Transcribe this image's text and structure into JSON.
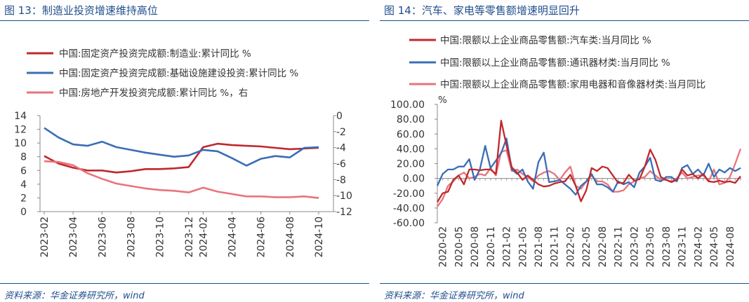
{
  "left": {
    "title": "图 13：制造业投资增速维持高位",
    "source": "资料来源：华金证券研究所，wind",
    "chart_data": {
      "type": "line",
      "x": [
        "2023-02",
        "2023-03",
        "2023-04",
        "2023-05",
        "2023-06",
        "2023-07",
        "2023-08",
        "2023-09",
        "2023-10",
        "2023-11",
        "2023-12",
        "2024-02",
        "2024-03",
        "2024-04",
        "2024-05",
        "2024-06",
        "2024-07",
        "2024-08",
        "2024-09",
        "2024-10"
      ],
      "xticks": [
        "2023-02",
        "2023-04",
        "2023-06",
        "2023-08",
        "2023-10",
        "2023-12",
        "2024-02",
        "2024-04",
        "2024-06",
        "2024-08",
        "2024-10"
      ],
      "y_left_ticks": [
        "14",
        "12",
        "10",
        "8",
        "6",
        "4",
        "2",
        "0"
      ],
      "y_right_ticks": [
        "0",
        "-2",
        "-4",
        "-6",
        "-8",
        "-10",
        "-12"
      ],
      "ylim_left": [
        0,
        14
      ],
      "ylim_right": [
        -12,
        0
      ],
      "series": [
        {
          "name": "中国:固定资产投资完成额:制造业:累计同比 %",
          "axis": "left",
          "color": "#c0282d",
          "values": [
            8.1,
            7.0,
            6.4,
            6.0,
            6.0,
            5.7,
            5.9,
            6.2,
            6.2,
            6.3,
            6.5,
            9.4,
            9.9,
            9.7,
            9.6,
            9.5,
            9.3,
            9.1,
            9.2,
            9.3
          ]
        },
        {
          "name": "中国:固定资产投资完成额:基础设施建设投资:累计同比 %",
          "axis": "left",
          "color": "#3a6db5",
          "values": [
            12.2,
            10.8,
            9.8,
            9.6,
            10.2,
            9.4,
            9.0,
            8.6,
            8.3,
            8.0,
            8.2,
            9.0,
            8.8,
            7.8,
            6.7,
            7.7,
            8.1,
            7.9,
            9.3,
            9.4
          ]
        },
        {
          "name": "中国:房地产开发投资完成额:累计同比 %，右",
          "axis": "right",
          "color": "#e9737c",
          "values": [
            -5.7,
            -5.8,
            -6.2,
            -7.2,
            -7.9,
            -8.5,
            -8.8,
            -9.1,
            -9.3,
            -9.4,
            -9.6,
            -9.0,
            -9.5,
            -9.8,
            -10.1,
            -10.1,
            -10.2,
            -10.2,
            -10.1,
            -10.3
          ]
        }
      ]
    }
  },
  "right": {
    "title": "图 14：汽车、家电等零售额增速明显回升",
    "source": "资料来源：华金证券研究所，wind",
    "chart_data": {
      "type": "line",
      "x": [
        "2020-01",
        "2020-02",
        "2020-03",
        "2020-04",
        "2020-05",
        "2020-06",
        "2020-07",
        "2020-08",
        "2020-09",
        "2020-10",
        "2020-11",
        "2020-12",
        "2021-01",
        "2021-02",
        "2021-03",
        "2021-04",
        "2021-05",
        "2021-06",
        "2021-07",
        "2021-08",
        "2021-09",
        "2021-10",
        "2021-11",
        "2021-12",
        "2022-01",
        "2022-02",
        "2022-03",
        "2022-04",
        "2022-05",
        "2022-06",
        "2022-07",
        "2022-08",
        "2022-09",
        "2022-10",
        "2022-11",
        "2022-12",
        "2023-01",
        "2023-02",
        "2023-03",
        "2023-04",
        "2023-05",
        "2023-06",
        "2023-07",
        "2023-08",
        "2023-09",
        "2023-10",
        "2023-11",
        "2023-12",
        "2024-01",
        "2024-02",
        "2024-03",
        "2024-04",
        "2024-05",
        "2024-06",
        "2024-07",
        "2024-08",
        "2024-09",
        "2024-10"
      ],
      "xticks": [
        "2020-02",
        "2020-05",
        "2020-08",
        "2020-11",
        "2021-02",
        "2021-05",
        "2021-08",
        "2021-11",
        "2022-02",
        "2022-05",
        "2022-08",
        "2022-11",
        "2023-02",
        "2023-05",
        "2023-08",
        "2023-11",
        "2024-02",
        "2024-05",
        "2024-08"
      ],
      "yticks": [
        "100.00",
        "80.00",
        "60.00",
        "40.00",
        "20.00",
        "0.00",
        "-20.00",
        "-40.00",
        "-60.00"
      ],
      "ylim": [
        -60,
        100
      ],
      "series": [
        {
          "name": "中国:限额以上企业商品零售额:汽车类:当月同比 %",
          "color": "#c0282d",
          "values": [
            -32,
            -20,
            -18,
            -2,
            4,
            -8,
            12,
            12,
            11,
            12,
            12,
            6,
            78,
            45,
            15,
            8,
            -2,
            4,
            -2,
            -8,
            -11,
            -10,
            -7,
            -5,
            -4,
            5,
            -10,
            -31,
            -16,
            14,
            10,
            16,
            14,
            4,
            -6,
            -6,
            5,
            -3,
            -1,
            16,
            39,
            25,
            2,
            -2,
            -5,
            -2,
            12,
            4,
            6,
            0,
            6,
            -4,
            -5,
            -3,
            -5,
            -4,
            -6,
            3
          ]
        },
        {
          "name": "中国:限额以上企业商品零售额:通讯器材类:当月同比 %",
          "color": "#3a6db5",
          "values": [
            -10,
            6,
            12,
            12,
            16,
            16,
            26,
            -2,
            12,
            44,
            14,
            24,
            34,
            54,
            12,
            6,
            12,
            -4,
            -14,
            22,
            35,
            -5,
            -4,
            -2,
            -8,
            -14,
            -22,
            -10,
            -4,
            6,
            -8,
            -8,
            -12,
            -18,
            -4,
            -8,
            -5,
            -12,
            8,
            16,
            28,
            -2,
            -4,
            2,
            2,
            -4,
            14,
            18,
            6,
            12,
            4,
            20,
            2,
            12,
            8,
            14,
            10,
            14
          ]
        },
        {
          "name": "中国:限额以上企业商品零售额:家用电器和音像器材类:当月同比 %",
          "color": "#e9737c",
          "values": [
            -38,
            -28,
            -10,
            -4,
            4,
            8,
            0,
            2,
            6,
            4,
            14,
            4,
            36,
            38,
            10,
            12,
            6,
            2,
            -4,
            4,
            8,
            10,
            6,
            -2,
            8,
            16,
            -10,
            -14,
            -4,
            4,
            -4,
            -4,
            -8,
            -18,
            -18,
            -16,
            -8,
            -4,
            0,
            2,
            10,
            4,
            -2,
            -2,
            -4,
            0,
            8,
            0,
            2,
            4,
            4,
            -4,
            12,
            -8,
            -6,
            2,
            20,
            40
          ]
        }
      ]
    }
  }
}
